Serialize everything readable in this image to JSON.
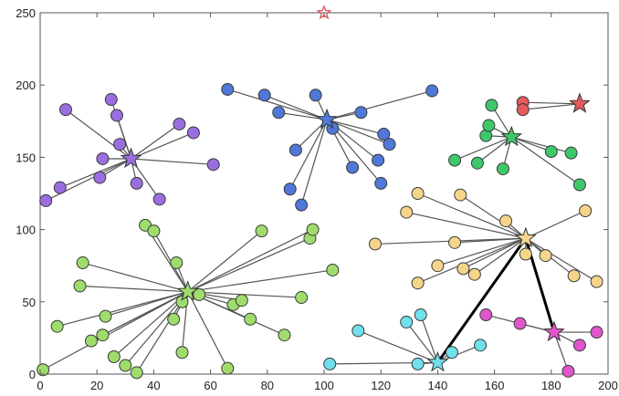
{
  "chart_data": {
    "type": "scatter",
    "xlim": [
      0,
      200
    ],
    "ylim": [
      0,
      250
    ],
    "xticks": [
      "0",
      "20",
      "40",
      "60",
      "80",
      "100",
      "120",
      "140",
      "160",
      "180",
      "200"
    ],
    "yticks": [
      "0",
      "50",
      "100",
      "150",
      "200",
      "250"
    ],
    "grid": false,
    "legend": "none",
    "links": [
      {
        "from": [
          140,
          8
        ],
        "to": [
          171,
          94
        ]
      },
      {
        "from": [
          171,
          94
        ],
        "to": [
          181,
          29
        ]
      }
    ],
    "clusters": [
      {
        "color": "#9b6ee0",
        "center": [
          32,
          149
        ],
        "points": [
          [
            2,
            120
          ],
          [
            7,
            129
          ],
          [
            9,
            183
          ],
          [
            21,
            136
          ],
          [
            22,
            149
          ],
          [
            25,
            190
          ],
          [
            27,
            179
          ],
          [
            28,
            159
          ],
          [
            34,
            132
          ],
          [
            42,
            121
          ],
          [
            49,
            173
          ],
          [
            54,
            167
          ],
          [
            61,
            145
          ]
        ]
      },
      {
        "color": "#4f78d8",
        "center": [
          101,
          176
        ],
        "points": [
          [
            66,
            197
          ],
          [
            79,
            193
          ],
          [
            84,
            181
          ],
          [
            88,
            128
          ],
          [
            90,
            155
          ],
          [
            92,
            117
          ],
          [
            97,
            193
          ],
          [
            103,
            170
          ],
          [
            110,
            143
          ],
          [
            113,
            181
          ],
          [
            119,
            148
          ],
          [
            120,
            132
          ],
          [
            121,
            166
          ],
          [
            123,
            159
          ],
          [
            138,
            196
          ]
        ]
      },
      {
        "color": "#e25a5a",
        "center": [
          190,
          187
        ],
        "points": [
          [
            170,
            188
          ],
          [
            170,
            183
          ]
        ]
      },
      {
        "color": "#3fc86a",
        "center": [
          166,
          164
        ],
        "points": [
          [
            146,
            148
          ],
          [
            154,
            146
          ],
          [
            157,
            165
          ],
          [
            158,
            172
          ],
          [
            159,
            186
          ],
          [
            163,
            142
          ],
          [
            180,
            154
          ],
          [
            187,
            153
          ],
          [
            190,
            131
          ]
        ]
      },
      {
        "color": "#9fdc6c",
        "center": [
          52,
          57
        ],
        "points": [
          [
            1,
            3
          ],
          [
            6,
            33
          ],
          [
            14,
            61
          ],
          [
            15,
            77
          ],
          [
            18,
            23
          ],
          [
            22,
            27
          ],
          [
            23,
            40
          ],
          [
            26,
            12
          ],
          [
            30,
            6
          ],
          [
            34,
            1
          ],
          [
            37,
            103
          ],
          [
            40,
            99
          ],
          [
            47,
            38
          ],
          [
            48,
            77
          ],
          [
            50,
            50
          ],
          [
            50,
            15
          ],
          [
            56,
            55
          ],
          [
            66,
            4
          ],
          [
            68,
            48
          ],
          [
            71,
            51
          ],
          [
            74,
            38
          ],
          [
            78,
            99
          ],
          [
            86,
            27
          ],
          [
            92,
            53
          ],
          [
            95,
            94
          ],
          [
            96,
            100
          ],
          [
            103,
            72
          ]
        ]
      },
      {
        "color": "#f5d58a",
        "center": [
          171,
          94
        ],
        "points": [
          [
            118,
            90
          ],
          [
            129,
            112
          ],
          [
            133,
            63
          ],
          [
            133,
            125
          ],
          [
            140,
            75
          ],
          [
            146,
            91
          ],
          [
            148,
            124
          ],
          [
            149,
            73
          ],
          [
            153,
            69
          ],
          [
            164,
            106
          ],
          [
            171,
            83
          ],
          [
            178,
            82
          ],
          [
            188,
            68
          ],
          [
            192,
            113
          ],
          [
            196,
            64
          ]
        ]
      },
      {
        "color": "#6fe0ec",
        "center": [
          140,
          8
        ],
        "points": [
          [
            102,
            7
          ],
          [
            112,
            30
          ],
          [
            129,
            36
          ],
          [
            133,
            7
          ],
          [
            134,
            41
          ],
          [
            145,
            15
          ],
          [
            155,
            20
          ]
        ]
      },
      {
        "color": "#e055cc",
        "center": [
          181,
          29
        ],
        "points": [
          [
            157,
            41
          ],
          [
            169,
            35
          ],
          [
            186,
            2
          ],
          [
            190,
            20
          ],
          [
            196,
            29
          ]
        ]
      }
    ],
    "extra_stars": [
      {
        "position": [
          100,
          250
        ],
        "color": "#e25a5a"
      }
    ]
  }
}
